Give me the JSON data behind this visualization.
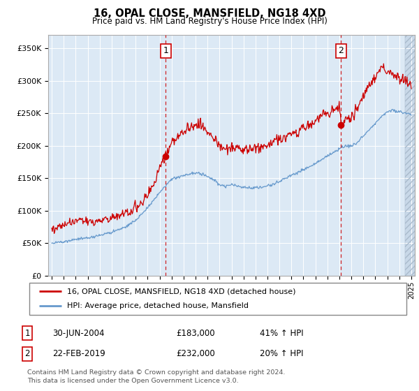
{
  "title": "16, OPAL CLOSE, MANSFIELD, NG18 4XD",
  "subtitle": "Price paid vs. HM Land Registry's House Price Index (HPI)",
  "ylim": [
    0,
    370000
  ],
  "yticks": [
    0,
    50000,
    100000,
    150000,
    200000,
    250000,
    300000,
    350000
  ],
  "purchase1_date": 2004.5,
  "purchase1_price": 183000,
  "purchase2_date": 2019.15,
  "purchase2_price": 232000,
  "legend1": "16, OPAL CLOSE, MANSFIELD, NG18 4XD (detached house)",
  "legend2": "HPI: Average price, detached house, Mansfield",
  "table_row1": [
    "1",
    "30-JUN-2004",
    "£183,000",
    "41% ↑ HPI"
  ],
  "table_row2": [
    "2",
    "22-FEB-2019",
    "£232,000",
    "20% ↑ HPI"
  ],
  "footnote1": "Contains HM Land Registry data © Crown copyright and database right 2024.",
  "footnote2": "This data is licensed under the Open Government Licence v3.0.",
  "bg_color": "#dce9f5",
  "hatch_bg_color": "#c8d8e8",
  "red_color": "#cc0000",
  "blue_color": "#6699cc",
  "grid_color": "#ffffff",
  "xmin": 1995,
  "xmax": 2025,
  "hatch_start": 2024.5
}
